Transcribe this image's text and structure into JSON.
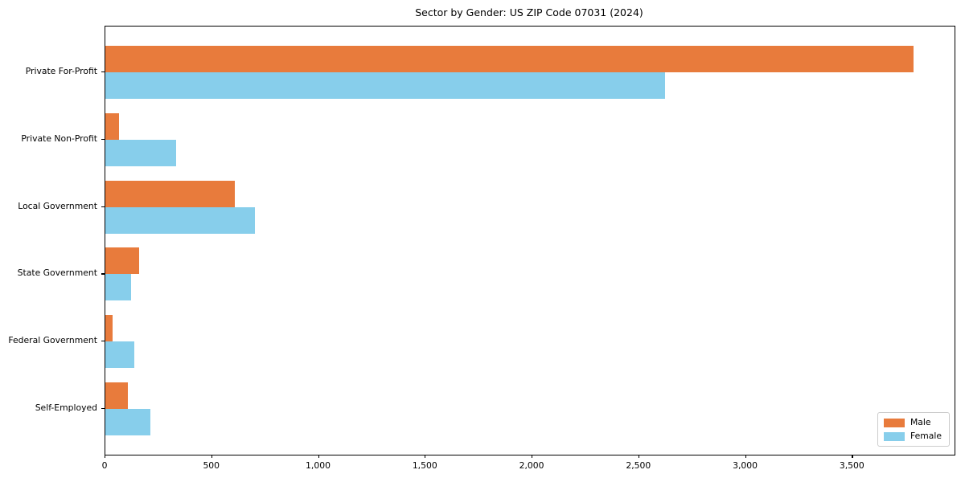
{
  "title": "Sector by Gender: US ZIP Code 07031 (2024)",
  "chart_data": {
    "type": "bar",
    "orientation": "horizontal",
    "title": "Sector by Gender: US ZIP Code 07031 (2024)",
    "categories": [
      "Private For-Profit",
      "Private Non-Profit",
      "Local Government",
      "State Government",
      "Federal Government",
      "Self-Employed"
    ],
    "series": [
      {
        "name": "Male",
        "color": "#e87b3c",
        "values": [
          3785,
          65,
          605,
          160,
          35,
          105
        ]
      },
      {
        "name": "Female",
        "color": "#87ceeb",
        "values": [
          2620,
          330,
          700,
          120,
          135,
          210
        ]
      }
    ],
    "xlabel": "",
    "ylabel": "",
    "xlim": [
      0,
      3977
    ],
    "xticks": [
      0,
      500,
      1000,
      1500,
      2000,
      2500,
      3000,
      3500
    ],
    "xtick_labels": [
      "0",
      "500",
      "1,000",
      "1,500",
      "2,000",
      "2,500",
      "3,000",
      "3,500"
    ],
    "grid": false,
    "legend": {
      "position": "lower right",
      "entries": [
        {
          "label": "Male",
          "color": "#e87b3c"
        },
        {
          "label": "Female",
          "color": "#87ceeb"
        }
      ]
    }
  }
}
